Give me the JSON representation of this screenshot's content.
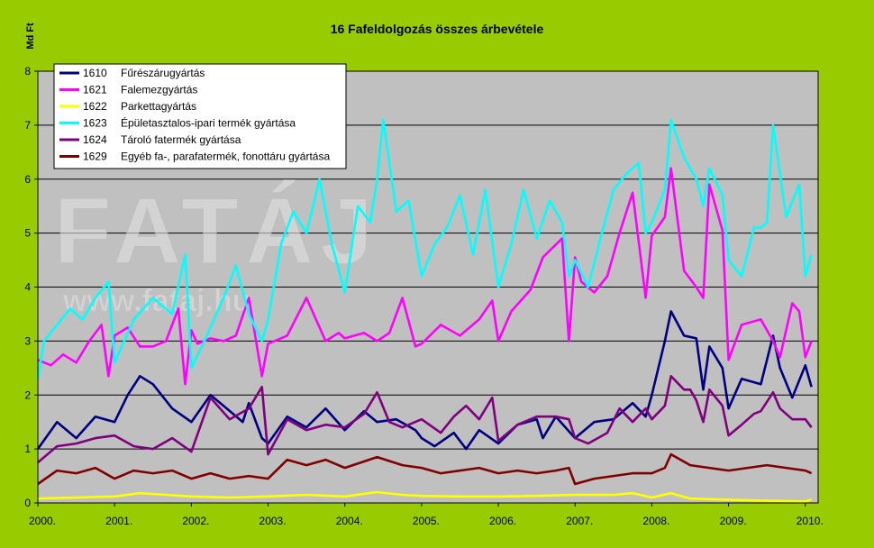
{
  "chart_data": {
    "type": "line",
    "title": "16 Fafeldolgozás összes árbevétele",
    "ylabel": "Md Ft",
    "ylim": [
      0,
      8
    ],
    "yticks": [
      "0",
      "1",
      "2",
      "3",
      "4",
      "5",
      "6",
      "7",
      "8"
    ],
    "xlim": [
      2000.0,
      2010.167
    ],
    "xtick_labels": [
      "2000.",
      "2001.",
      "2002.",
      "2003.",
      "2004.",
      "2005.",
      "2006.",
      "2007.",
      "2008.",
      "2009.",
      "2010."
    ],
    "grid": "horizontal",
    "legend_position": "top-left",
    "watermark": [
      "FATÁJ",
      "www.fataj.hu"
    ],
    "colors": {
      "background": "#99cc00",
      "plot_area": "#c0c0c0"
    },
    "series": [
      {
        "code": "1610",
        "name": "Fűrészárugyártás",
        "color": "#000080",
        "x": [
          2000.0,
          2000.25,
          2000.5,
          2000.75,
          2001.0,
          2001.17,
          2001.33,
          2001.5,
          2001.75,
          2002.0,
          2002.25,
          2002.42,
          2002.67,
          2002.75,
          2002.92,
          2003.0,
          2003.25,
          2003.5,
          2003.75,
          2004.0,
          2004.25,
          2004.42,
          2004.67,
          2004.92,
          2005.0,
          2005.17,
          2005.42,
          2005.58,
          2005.75,
          2006.0,
          2006.25,
          2006.5,
          2006.58,
          2006.75,
          2007.0,
          2007.25,
          2007.5,
          2007.75,
          2007.92,
          2008.0,
          2008.17,
          2008.25,
          2008.42,
          2008.58,
          2008.67,
          2008.75,
          2008.92,
          2009.0,
          2009.17,
          2009.42,
          2009.58,
          2009.67,
          2009.83,
          2010.0,
          2010.08
        ],
        "values": [
          1.0,
          1.5,
          1.2,
          1.6,
          1.5,
          2.0,
          2.35,
          2.2,
          1.75,
          1.5,
          2.0,
          1.8,
          1.5,
          1.85,
          1.2,
          1.1,
          1.6,
          1.4,
          1.75,
          1.35,
          1.7,
          1.5,
          1.55,
          1.35,
          1.2,
          1.05,
          1.3,
          1.0,
          1.35,
          1.1,
          1.45,
          1.55,
          1.2,
          1.6,
          1.2,
          1.5,
          1.55,
          1.85,
          1.6,
          2.0,
          3.0,
          3.55,
          3.1,
          3.05,
          2.1,
          2.9,
          2.5,
          1.75,
          2.3,
          2.2,
          3.1,
          2.5,
          1.95,
          2.55,
          2.15
        ]
      },
      {
        "code": "1621",
        "name": "Falemezgyártás",
        "color": "#ff00ff",
        "x": [
          2000.0,
          2000.17,
          2000.33,
          2000.5,
          2000.67,
          2000.83,
          2000.92,
          2001.0,
          2001.17,
          2001.33,
          2001.5,
          2001.67,
          2001.83,
          2001.92,
          2002.0,
          2002.08,
          2002.25,
          2002.42,
          2002.58,
          2002.75,
          2002.92,
          2003.0,
          2003.25,
          2003.5,
          2003.75,
          2003.92,
          2004.0,
          2004.25,
          2004.42,
          2004.58,
          2004.75,
          2004.92,
          2005.0,
          2005.25,
          2005.5,
          2005.75,
          2005.92,
          2006.0,
          2006.17,
          2006.42,
          2006.58,
          2006.83,
          2006.92,
          2007.0,
          2007.08,
          2007.25,
          2007.42,
          2007.58,
          2007.75,
          2007.92,
          2008.0,
          2008.17,
          2008.25,
          2008.42,
          2008.58,
          2008.67,
          2008.75,
          2008.92,
          2009.0,
          2009.17,
          2009.42,
          2009.58,
          2009.67,
          2009.83,
          2009.92,
          2010.0,
          2010.08
        ],
        "values": [
          2.65,
          2.55,
          2.75,
          2.6,
          3.0,
          3.3,
          2.35,
          3.1,
          3.25,
          2.9,
          2.9,
          3.0,
          3.6,
          2.2,
          3.2,
          2.95,
          3.05,
          3.0,
          3.1,
          3.8,
          2.35,
          2.95,
          3.1,
          3.8,
          3.0,
          3.15,
          3.05,
          3.15,
          3.0,
          3.15,
          3.8,
          2.9,
          2.95,
          3.3,
          3.1,
          3.4,
          3.75,
          3.0,
          3.55,
          3.95,
          4.55,
          4.9,
          3.0,
          4.55,
          4.1,
          3.9,
          4.2,
          5.0,
          5.75,
          3.8,
          4.95,
          5.3,
          6.2,
          4.3,
          4.0,
          3.8,
          5.9,
          5.05,
          2.65,
          3.3,
          3.4,
          3.0,
          2.7,
          3.7,
          3.55,
          2.7,
          3.0
        ]
      },
      {
        "code": "1622",
        "name": "Parkettagyártás",
        "color": "#ffff00",
        "x": [
          2000.0,
          2000.5,
          2001.0,
          2001.33,
          2001.67,
          2002.0,
          2002.5,
          2003.0,
          2003.5,
          2004.0,
          2004.42,
          2004.75,
          2005.0,
          2005.5,
          2006.0,
          2006.5,
          2007.0,
          2007.5,
          2007.75,
          2008.0,
          2008.25,
          2008.5,
          2009.0,
          2009.5,
          2010.0,
          2010.08
        ],
        "values": [
          0.08,
          0.1,
          0.12,
          0.18,
          0.15,
          0.12,
          0.1,
          0.12,
          0.15,
          0.12,
          0.2,
          0.15,
          0.13,
          0.12,
          0.12,
          0.13,
          0.15,
          0.15,
          0.18,
          0.1,
          0.18,
          0.08,
          0.06,
          0.04,
          0.03,
          0.06
        ]
      },
      {
        "code": "1623",
        "name": "Épületasztalos-ipari termék gyártása",
        "color": "#00ffff",
        "x": [
          2000.0,
          2000.08,
          2000.25,
          2000.42,
          2000.58,
          2000.75,
          2000.92,
          2001.0,
          2001.25,
          2001.5,
          2001.75,
          2001.92,
          2002.0,
          2002.17,
          2002.42,
          2002.58,
          2002.75,
          2002.92,
          2003.0,
          2003.17,
          2003.33,
          2003.5,
          2003.67,
          2003.83,
          2004.0,
          2004.17,
          2004.33,
          2004.42,
          2004.5,
          2004.67,
          2004.83,
          2005.0,
          2005.17,
          2005.33,
          2005.5,
          2005.67,
          2005.83,
          2006.0,
          2006.17,
          2006.33,
          2006.5,
          2006.67,
          2006.83,
          2006.92,
          2007.0,
          2007.17,
          2007.33,
          2007.5,
          2007.67,
          2007.83,
          2007.92,
          2008.0,
          2008.17,
          2008.25,
          2008.42,
          2008.58,
          2008.67,
          2008.75,
          2008.92,
          2009.0,
          2009.17,
          2009.33,
          2009.42,
          2009.5,
          2009.58,
          2009.75,
          2009.92,
          2010.0,
          2010.08
        ],
        "values": [
          2.3,
          3.0,
          3.3,
          3.6,
          3.4,
          3.8,
          4.1,
          2.6,
          3.4,
          3.8,
          3.5,
          4.6,
          2.5,
          3.0,
          3.8,
          4.4,
          3.5,
          3.0,
          3.4,
          4.8,
          5.4,
          5.0,
          6.0,
          4.8,
          3.9,
          5.5,
          5.2,
          6.0,
          7.1,
          5.4,
          5.6,
          4.2,
          4.8,
          5.1,
          5.7,
          4.6,
          5.8,
          4.0,
          4.8,
          5.8,
          4.9,
          5.6,
          5.2,
          4.2,
          4.5,
          4.0,
          4.9,
          5.8,
          6.1,
          6.3,
          5.0,
          5.2,
          5.8,
          7.1,
          6.4,
          6.0,
          5.5,
          6.2,
          5.7,
          4.5,
          4.2,
          5.1,
          5.1,
          5.2,
          7.0,
          5.3,
          5.9,
          4.2,
          4.6
        ]
      },
      {
        "code": "1624",
        "name": "Tároló fatermék gyártása",
        "color": "#800080",
        "x": [
          2000.0,
          2000.25,
          2000.5,
          2000.75,
          2001.0,
          2001.25,
          2001.5,
          2001.75,
          2002.0,
          2002.25,
          2002.5,
          2002.75,
          2002.92,
          2003.0,
          2003.25,
          2003.5,
          2003.75,
          2004.0,
          2004.25,
          2004.42,
          2004.58,
          2004.75,
          2005.0,
          2005.25,
          2005.42,
          2005.58,
          2005.75,
          2005.92,
          2006.0,
          2006.25,
          2006.5,
          2006.75,
          2006.92,
          2007.0,
          2007.17,
          2007.42,
          2007.58,
          2007.75,
          2007.92,
          2008.0,
          2008.17,
          2008.25,
          2008.42,
          2008.5,
          2008.58,
          2008.67,
          2008.75,
          2008.92,
          2009.0,
          2009.17,
          2009.33,
          2009.42,
          2009.58,
          2009.67,
          2009.83,
          2010.0,
          2010.08
        ],
        "values": [
          0.75,
          1.05,
          1.1,
          1.2,
          1.25,
          1.05,
          1.0,
          1.2,
          0.95,
          1.95,
          1.55,
          1.75,
          2.15,
          0.9,
          1.55,
          1.35,
          1.45,
          1.4,
          1.65,
          2.05,
          1.5,
          1.4,
          1.55,
          1.3,
          1.6,
          1.8,
          1.55,
          1.95,
          1.15,
          1.45,
          1.6,
          1.6,
          1.55,
          1.2,
          1.1,
          1.3,
          1.75,
          1.5,
          1.75,
          1.55,
          1.8,
          2.35,
          2.1,
          2.1,
          1.9,
          1.5,
          2.1,
          1.8,
          1.25,
          1.45,
          1.65,
          1.7,
          2.05,
          1.75,
          1.55,
          1.55,
          1.4
        ]
      },
      {
        "code": "1629",
        "name": "Egyéb fa-, parafatermék, fonottáru gyártása",
        "color": "#800000",
        "x": [
          2000.0,
          2000.25,
          2000.5,
          2000.75,
          2001.0,
          2001.25,
          2001.5,
          2001.75,
          2002.0,
          2002.25,
          2002.5,
          2002.75,
          2003.0,
          2003.25,
          2003.5,
          2003.75,
          2004.0,
          2004.42,
          2004.75,
          2005.0,
          2005.25,
          2005.5,
          2005.75,
          2006.0,
          2006.25,
          2006.5,
          2006.75,
          2006.92,
          2007.0,
          2007.25,
          2007.5,
          2007.75,
          2008.0,
          2008.17,
          2008.25,
          2008.5,
          2008.75,
          2009.0,
          2009.25,
          2009.5,
          2009.75,
          2010.0,
          2010.08
        ],
        "values": [
          0.35,
          0.6,
          0.55,
          0.65,
          0.45,
          0.6,
          0.55,
          0.6,
          0.45,
          0.55,
          0.45,
          0.5,
          0.45,
          0.8,
          0.7,
          0.8,
          0.65,
          0.85,
          0.7,
          0.65,
          0.55,
          0.6,
          0.65,
          0.55,
          0.6,
          0.55,
          0.6,
          0.65,
          0.35,
          0.45,
          0.5,
          0.55,
          0.55,
          0.65,
          0.9,
          0.7,
          0.65,
          0.6,
          0.65,
          0.7,
          0.65,
          0.6,
          0.55
        ]
      }
    ]
  }
}
